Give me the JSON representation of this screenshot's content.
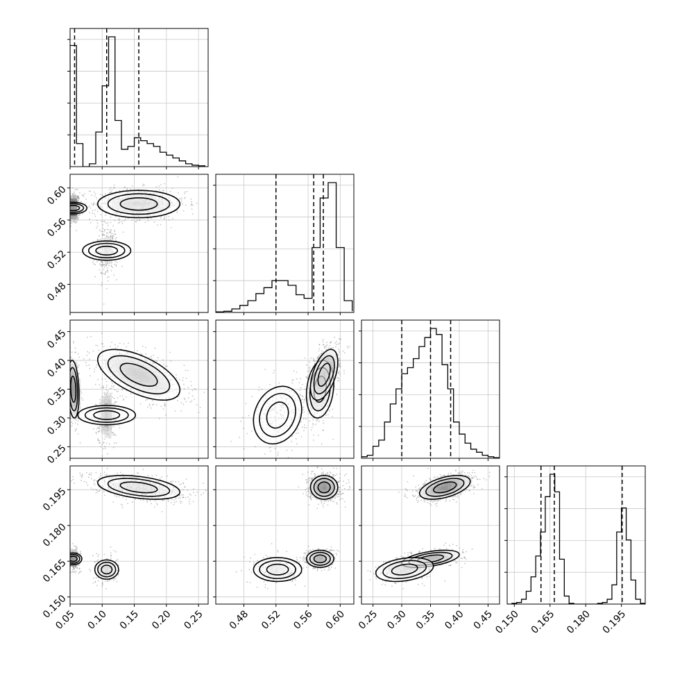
{
  "chart_data": {
    "type": "corner",
    "dimensions": 4,
    "params": [
      {
        "range": [
          0.05,
          0.265
        ],
        "ticks": [
          "0.05",
          "0.10",
          "0.15",
          "0.20",
          "0.25"
        ],
        "tick_values": [
          0.05,
          0.1,
          0.15,
          0.2,
          0.25
        ],
        "quantiles": [
          0.057,
          0.107,
          0.157
        ],
        "hist_bins": [
          0.05,
          0.06,
          0.07,
          0.08,
          0.09,
          0.1,
          0.11,
          0.12,
          0.13,
          0.14,
          0.15,
          0.16,
          0.17,
          0.18,
          0.19,
          0.2,
          0.21,
          0.22,
          0.23,
          0.24,
          0.25,
          0.26
        ],
        "hist_counts": [
          42,
          8,
          0,
          1,
          12,
          28,
          45,
          16,
          6,
          7,
          10,
          9,
          8,
          7,
          5,
          4,
          3,
          2,
          1,
          0.5,
          0.3
        ]
      },
      {
        "range": [
          0.445,
          0.617
        ],
        "ticks": [
          "0.48",
          "0.52",
          "0.56",
          "0.60"
        ],
        "tick_values": [
          0.48,
          0.52,
          0.56,
          0.6
        ],
        "quantiles": [
          0.52,
          0.567,
          0.579
        ],
        "hist_bins": [
          0.445,
          0.455,
          0.465,
          0.475,
          0.485,
          0.495,
          0.505,
          0.515,
          0.525,
          0.535,
          0.545,
          0.555,
          0.565,
          0.575,
          0.585,
          0.595,
          0.605,
          0.615
        ],
        "hist_counts": [
          0.5,
          1,
          3,
          6,
          10,
          16,
          21,
          27,
          27,
          23,
          15,
          12,
          55,
          97,
          110,
          55,
          10,
          1
        ]
      },
      {
        "range": [
          0.23,
          0.47
        ],
        "ticks": [
          "0.25",
          "0.30",
          "0.35",
          "0.40",
          "0.45"
        ],
        "tick_values": [
          0.25,
          0.3,
          0.35,
          0.4,
          0.45
        ],
        "quantiles": [
          0.3,
          0.35,
          0.385
        ],
        "hist_bins": [
          0.23,
          0.24,
          0.25,
          0.26,
          0.27,
          0.28,
          0.29,
          0.3,
          0.31,
          0.32,
          0.33,
          0.34,
          0.35,
          0.36,
          0.37,
          0.38,
          0.39,
          0.4,
          0.41,
          0.42,
          0.43,
          0.44,
          0.45,
          0.46,
          0.47
        ],
        "hist_counts": [
          0.5,
          1,
          4,
          6,
          12,
          18,
          23,
          28,
          30,
          33,
          37,
          40,
          43,
          41,
          31,
          23,
          12,
          8,
          5,
          3,
          2,
          1,
          0.5,
          0.2
        ]
      },
      {
        "range": [
          0.147,
          0.205
        ],
        "ticks": [
          "0.150",
          "0.165",
          "0.180",
          "0.195"
        ],
        "tick_values": [
          0.15,
          0.165,
          0.18,
          0.195
        ],
        "quantiles": [
          0.1612,
          0.1668,
          0.1953
        ],
        "hist_bins": [
          0.147,
          0.149,
          0.151,
          0.153,
          0.155,
          0.157,
          0.159,
          0.161,
          0.163,
          0.165,
          0.167,
          0.169,
          0.171,
          0.173,
          0.175,
          0.177,
          0.179,
          0.181,
          0.183,
          0.185,
          0.187,
          0.189,
          0.191,
          0.193,
          0.195,
          0.197,
          0.199,
          0.201,
          0.203,
          0.205
        ],
        "hist_counts": [
          0,
          0.5,
          1,
          3,
          8,
          17,
          30,
          45,
          67,
          81,
          70,
          28,
          5,
          0.5,
          0,
          0,
          0,
          0,
          0,
          0.5,
          1,
          3,
          12,
          45,
          60,
          40,
          15,
          3,
          0.5
        ]
      }
    ],
    "clusters": [
      {
        "means": [
          0.055,
          0.575,
          0.35,
          0.166
        ],
        "sds": [
          0.0045,
          0.0085,
          0.025,
          0.0018
        ],
        "weight": 0.28
      },
      {
        "means": [
          0.107,
          0.522,
          0.305,
          0.1615
        ],
        "sds": [
          0.0075,
          0.015,
          0.025,
          0.0025
        ],
        "weight": 0.18
      },
      {
        "means": [
          0.157,
          0.58,
          0.375,
          0.196
        ],
        "sds": [
          0.032,
          0.0085,
          0.022,
          0.0025
        ],
        "weight": 0.54
      }
    ],
    "grid": true,
    "xlabel": "",
    "ylabel": ""
  }
}
